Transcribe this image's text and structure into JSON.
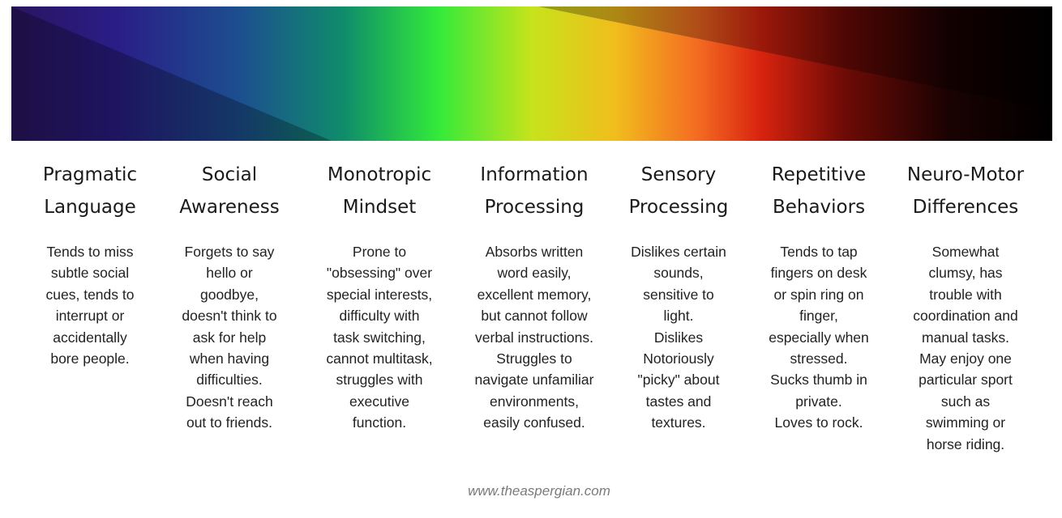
{
  "spectrum": {
    "colors": [
      "#2a1560",
      "#1f3b8a",
      "#0d7a6a",
      "#2fe83a",
      "#c8e21a",
      "#f2b51a",
      "#f25a1f",
      "#b5150b",
      "#3a0505",
      "#000000"
    ]
  },
  "columns": [
    {
      "title": "Pragmatic\nLanguage",
      "body": "Tends to miss\nsubtle social\ncues, tends to\ninterrupt or\naccidentally\nbore people."
    },
    {
      "title": "Social\nAwareness",
      "body": "Forgets to say\nhello or\ngoodbye,\ndoesn't think to\nask for help\nwhen having\ndifficulties.\nDoesn't reach\nout to friends."
    },
    {
      "title": "Monotropic\nMindset",
      "body": "Prone to\n\"obsessing\" over\nspecial interests,\ndifficulty with\ntask switching,\ncannot multitask,\nstruggles with\nexecutive\nfunction."
    },
    {
      "title": "Information\nProcessing",
      "body": "Absorbs written\nword easily,\nexcellent memory,\nbut cannot follow\nverbal instructions.\nStruggles to\nnavigate unfamiliar\nenvironments,\neasily confused."
    },
    {
      "title": "Sensory\nProcessing",
      "body": "Dislikes certain\nsounds,\nsensitive to\nlight.\nDislikes\nNotoriously\n\"picky\" about\ntastes and\ntextures."
    },
    {
      "title": "Repetitive\nBehaviors",
      "body": "Tends to tap\nfingers on desk\nor spin ring on\nfinger,\nespecially when\nstressed.\nSucks thumb in\nprivate.\nLoves to rock."
    },
    {
      "title": "Neuro-Motor\nDifferences",
      "body": "Somewhat\nclumsy, has\ntrouble with\ncoordination and\nmanual tasks.\nMay enjoy one\nparticular sport\nsuch as\nswimming or\nhorse riding."
    }
  ],
  "footer": {
    "url": "www.theaspergian.com"
  }
}
